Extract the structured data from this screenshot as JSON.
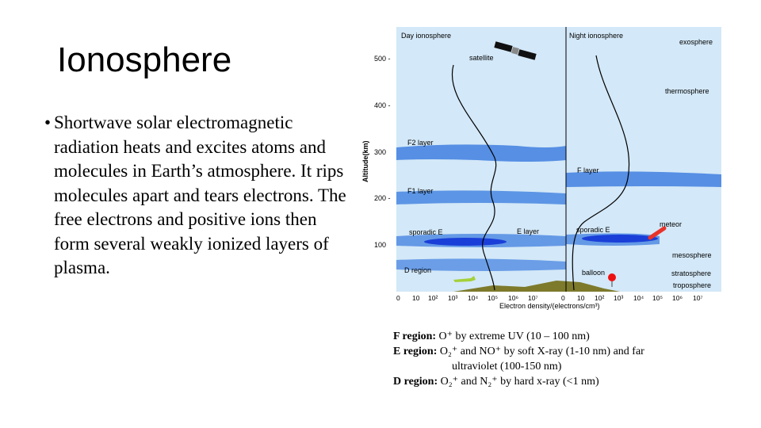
{
  "slide": {
    "title": "Ionosphere",
    "bullet_marker": "•",
    "bullet": "Shortwave solar electromagnetic radiation heats and excites atoms and molecules in Earth’s atmosphere. It rips molecules apart and tears electrons. The free electrons and positive ions then form several weakly ionized layers of plasma."
  },
  "diagram": {
    "day_label": "Day ionosphere",
    "night_label": "Night ionosphere",
    "ylabel": "Altitude(km)",
    "xlabel": "Electron density/(electrons/cm³)",
    "y_ticks": [
      "500 -",
      "400 -",
      "300",
      "200 -",
      "100"
    ],
    "x_ticks": [
      "0",
      "10",
      "10²",
      "10³",
      "10⁴",
      "10⁵",
      "10⁶",
      "10⁷",
      "0",
      "10",
      "10²",
      "10³",
      "10⁴",
      "10⁵",
      "10⁶",
      "10⁷"
    ],
    "labels": {
      "satellite": "satellite",
      "exosphere": "exosphere",
      "thermosphere": "thermosphere",
      "f2_layer": "F2 layer",
      "f_layer": "F layer",
      "f1_layer": "F1 layer",
      "sporadic_e_day": "sporadic E",
      "e_layer": "E layer",
      "sporadic_e_night": "sporadic E",
      "meteor": "meteor",
      "mesosphere": "mesosphere",
      "d_region": "D region",
      "balloon": "balloon",
      "stratosphere": "stratosphere",
      "troposphere": "troposphere"
    },
    "colors": {
      "sky": "#d3e8f8",
      "layer": "#3f7fe0",
      "sporadic": "#1a3fd8",
      "ground": "#7d7a2c",
      "meteor": "#e8332a",
      "balloon": "#ee1111",
      "plane": "#a4d03a"
    }
  },
  "regions": {
    "f_label": "F region:",
    "f_text": "O⁺ by extreme UV (10 – 100 nm)",
    "e_label": "E region:",
    "e_text": "O₂⁺ and NO⁺ by soft X-ray (1-10 nm) and far",
    "e_text2": "ultraviolet (100-150 nm)",
    "d_label": "D region:",
    "d_text": "O₂⁺ and N₂⁺ by hard x-ray (<1 nm)"
  }
}
